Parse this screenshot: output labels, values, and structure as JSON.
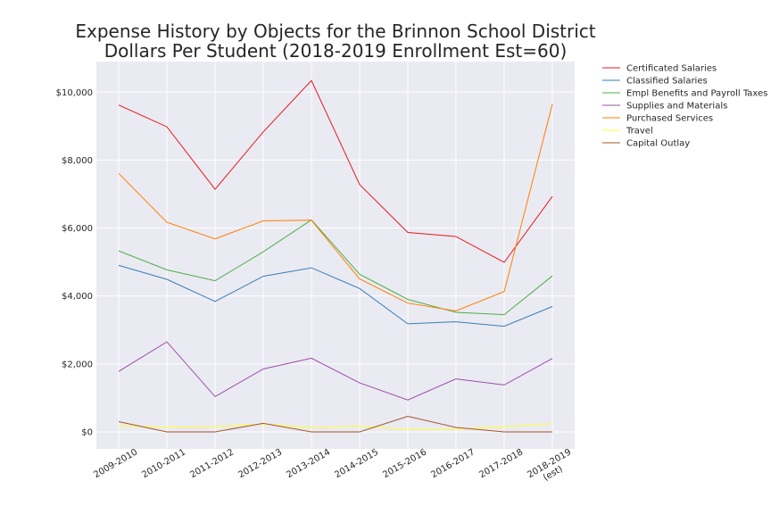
{
  "chart_data": {
    "type": "line",
    "title": [
      "Expense History by Objects for the Brinnon School District",
      "Dollars Per Student (2018-2019 Enrollment Est=60)"
    ],
    "xlabel": "",
    "ylabel": "",
    "categories": [
      [
        "2009-2010"
      ],
      [
        "2010-2011"
      ],
      [
        "2011-2012"
      ],
      [
        "2012-2013"
      ],
      [
        "2013-2014"
      ],
      [
        "2014-2015"
      ],
      [
        "2015-2016"
      ],
      [
        "2016-2017"
      ],
      [
        "2017-2018"
      ],
      [
        "2018-2019",
        "(est)"
      ]
    ],
    "yticks": [
      0,
      2000,
      4000,
      6000,
      8000,
      10000
    ],
    "ytick_labels": [
      "$0",
      "$2,000",
      "$4,000",
      "$6,000",
      "$8,000",
      "$10,000"
    ],
    "ylim": [
      -500,
      10900
    ],
    "grid": true,
    "legend_position": "outside-right-top",
    "series": [
      {
        "name": "Certificated Salaries",
        "color": "#e41a1c",
        "values": [
          9620,
          8980,
          7140,
          8830,
          10340,
          7280,
          5870,
          5750,
          4990,
          6930
        ]
      },
      {
        "name": "Classified Salaries",
        "color": "#377eb8",
        "values": [
          4900,
          4490,
          3840,
          4580,
          4830,
          4220,
          3180,
          3240,
          3110,
          3690
        ]
      },
      {
        "name": "Empl Benefits and Payroll Taxes",
        "color": "#4daf4a",
        "values": [
          5330,
          4770,
          4450,
          5300,
          6240,
          4640,
          3900,
          3520,
          3450,
          4590
        ]
      },
      {
        "name": "Supplies and Materials",
        "color": "#984ea3",
        "values": [
          1780,
          2650,
          1040,
          1850,
          2170,
          1440,
          940,
          1560,
          1380,
          2160
        ]
      },
      {
        "name": "Purchased Services",
        "color": "#ff7f00",
        "values": [
          7610,
          6170,
          5680,
          6210,
          6230,
          4500,
          3790,
          3560,
          4130,
          9650
        ]
      },
      {
        "name": "Travel",
        "color": "#ffff33",
        "values": [
          180,
          140,
          150,
          230,
          120,
          170,
          70,
          80,
          150,
          240
        ]
      },
      {
        "name": "Capital Outlay",
        "color": "#a65628",
        "values": [
          300,
          0,
          0,
          250,
          0,
          0,
          460,
          130,
          0,
          0
        ]
      }
    ]
  }
}
